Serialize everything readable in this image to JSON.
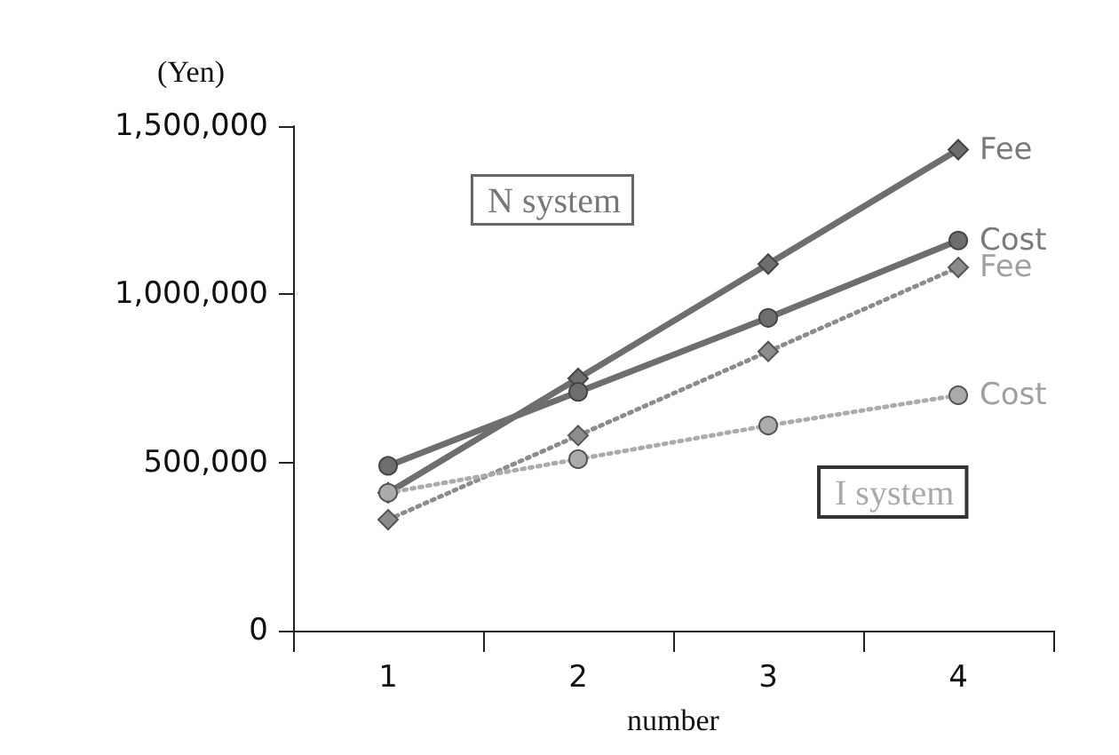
{
  "chart_data": {
    "type": "line",
    "xlabel": "number",
    "ylabel": "(Yen)",
    "categories": [
      "1",
      "2",
      "3",
      "4"
    ],
    "series": [
      {
        "name": "Fee",
        "color": "#6e6e6e",
        "marker": "diamond",
        "line_style": "solid",
        "values": [
          410000,
          750000,
          1090000,
          1430000
        ]
      },
      {
        "name": "Cost",
        "color": "#6e6e6e",
        "marker": "circle",
        "line_style": "solid",
        "values": [
          490000,
          710000,
          930000,
          1160000
        ]
      },
      {
        "name": "Fee",
        "color": "#8c8c8c",
        "marker": "diamond",
        "line_style": "dotted",
        "values": [
          330000,
          580000,
          830000,
          1080000
        ]
      },
      {
        "name": "Cost",
        "color": "#ababab",
        "marker": "circle",
        "line_style": "dotted",
        "values": [
          410000,
          510000,
          610000,
          700000
        ]
      }
    ],
    "ylim": [
      0,
      1500000
    ],
    "yticks": [
      0,
      {
        "value": 500000,
        "label": "500,000"
      },
      {
        "value": 1000000,
        "label": "1,000,000"
      },
      {
        "value": 1500000,
        "label": "1,500,000"
      }
    ],
    "annotations": [
      "N system",
      "I system"
    ],
    "grid": false,
    "legend": false
  }
}
